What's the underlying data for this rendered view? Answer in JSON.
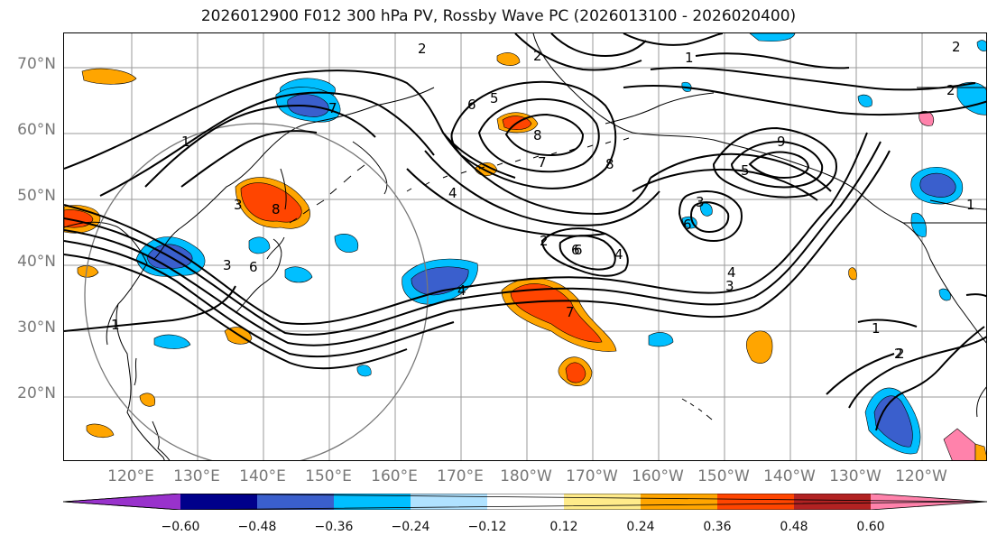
{
  "title": "2026012900 F012 300 hPa PV, Rossby Wave PC (2026013100 - 2026020400)",
  "lat_labels": [
    "70°N",
    "60°N",
    "50°N",
    "40°N",
    "30°N",
    "20°N"
  ],
  "lon_labels": [
    "120°E",
    "130°E",
    "140°E",
    "150°E",
    "160°E",
    "170°E",
    "180°W",
    "170°W",
    "160°W",
    "150°W",
    "140°W",
    "130°W",
    "120°W"
  ],
  "colorbar": {
    "ticks": [
      "−0.60",
      "−0.48",
      "−0.36",
      "−0.24",
      "−0.12",
      "0.12",
      "0.24",
      "0.36",
      "0.48",
      "0.60"
    ],
    "colors": [
      "#9932cc",
      "#00008b",
      "#3a5fcd",
      "#00bfff",
      "#b0e2ff",
      "#ffffff",
      "#ffeb8a",
      "#ffa500",
      "#ff4500",
      "#b22222",
      "#ff82ab"
    ]
  },
  "contour_labels": [
    "1",
    "2",
    "1",
    "7",
    "2",
    "6",
    "5",
    "8",
    "7",
    "1",
    "2",
    "2",
    "6",
    "4",
    "3",
    "8",
    "6",
    "9",
    "5",
    "6",
    "2",
    "6",
    "4",
    "3",
    "3",
    "4",
    "7",
    "1",
    "2",
    "1",
    "4",
    "3",
    "8",
    "2"
  ]
}
